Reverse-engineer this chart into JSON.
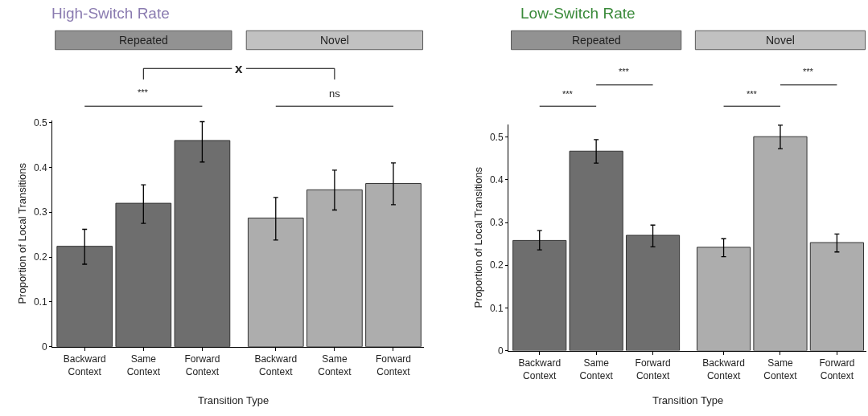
{
  "chart_data": [
    {
      "type": "bar",
      "title": "High-Switch Rate",
      "xlabel": "Transition Type",
      "ylabel": "Proportion of Local Transitions",
      "categories": [
        "Backward Context",
        "Same Context",
        "Forward Context",
        "Backward Context",
        "Same Context",
        "Forward Context"
      ],
      "series": [
        {
          "name": "Repeated",
          "color": "#6e6e6e",
          "values": [
            0.224,
            0.32,
            0.46,
            null,
            null,
            null
          ],
          "errors": [
            [
              0.184,
              0.262
            ],
            [
              0.275,
              0.361
            ],
            [
              0.412,
              0.502
            ],
            null,
            null,
            null
          ]
        },
        {
          "name": "Novel",
          "color": "#adadad",
          "values": [
            null,
            null,
            null,
            0.287,
            0.35,
            0.364
          ],
          "errors": [
            null,
            null,
            null,
            [
              0.238,
              0.333
            ],
            [
              0.305,
              0.394
            ],
            [
              0.317,
              0.41
            ]
          ]
        }
      ],
      "ylim": [
        0,
        0.505
      ],
      "yticks": [
        0,
        0.1,
        0.2,
        0.3,
        0.4,
        0.5
      ],
      "annotations": [
        "***",
        "ns",
        "x"
      ]
    },
    {
      "type": "bar",
      "title": "Low-Switch Rate",
      "xlabel": "Transition Type",
      "ylabel": "Proportion of Local Transitions",
      "categories": [
        "Backward Context",
        "Same Context",
        "Forward Context",
        "Backward Context",
        "Same Context",
        "Forward Context"
      ],
      "series": [
        {
          "name": "Repeated",
          "color": "#6e6e6e",
          "values": [
            0.258,
            0.467,
            0.27,
            null,
            null,
            null
          ],
          "errors": [
            [
              0.236,
              0.281
            ],
            [
              0.439,
              0.494
            ],
            [
              0.243,
              0.294
            ],
            null,
            null,
            null
          ]
        },
        {
          "name": "Novel",
          "color": "#adadad",
          "values": [
            null,
            null,
            null,
            0.242,
            0.501,
            0.253
          ],
          "errors": [
            null,
            null,
            null,
            [
              0.22,
              0.262
            ],
            [
              0.473,
              0.528
            ],
            [
              0.231,
              0.273
            ]
          ]
        }
      ],
      "ylim": [
        0,
        0.53
      ],
      "yticks": [
        0,
        0.1,
        0.2,
        0.3,
        0.4,
        0.5
      ],
      "annotations": [
        "***",
        "***",
        "***",
        "***"
      ]
    }
  ]
}
